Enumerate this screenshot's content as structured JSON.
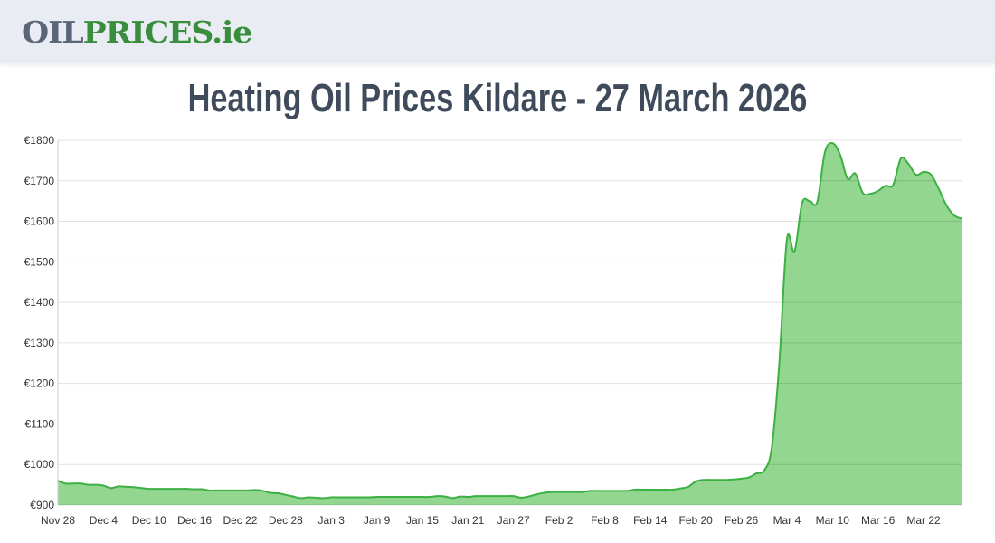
{
  "header": {
    "logo_part1": "OIL",
    "logo_part2": "PRICES.ie"
  },
  "page_title": "Heating Oil Prices Kildare - 27 March 2026",
  "colors": {
    "line": "#3cb043",
    "fill": "#92d690",
    "grid": "#dddddd",
    "logo_grey": "#5b6478",
    "logo_green": "#388e3c"
  },
  "chart_data": {
    "type": "area",
    "title": "",
    "xlabel": "",
    "ylabel": "",
    "ylim": [
      900,
      1800
    ],
    "y_ticks": [
      "€900",
      "€1000",
      "€1100",
      "€1200",
      "€1300",
      "€1400",
      "€1500",
      "€1600",
      "€1700",
      "€1800"
    ],
    "x_ticks": [
      "Nov 28",
      "Dec 4",
      "Dec 10",
      "Dec 16",
      "Dec 22",
      "Dec 28",
      "Jan 3",
      "Jan 9",
      "Jan 15",
      "Jan 21",
      "Jan 27",
      "Feb 2",
      "Feb 8",
      "Feb 14",
      "Feb 20",
      "Feb 26",
      "Mar 4",
      "Mar 10",
      "Mar 16",
      "Mar 22"
    ],
    "x_start": "Nov 28",
    "x_end": "Mar 27",
    "grid": true,
    "values": [
      960,
      953,
      953,
      953,
      950,
      950,
      948,
      942,
      946,
      945,
      944,
      942,
      940,
      940,
      940,
      940,
      940,
      940,
      939,
      939,
      936,
      936,
      936,
      936,
      936,
      936,
      937,
      935,
      930,
      929,
      925,
      921,
      917,
      919,
      918,
      917,
      919,
      919,
      919,
      919,
      919,
      919,
      920,
      920,
      920,
      920,
      920,
      920,
      920,
      920,
      922,
      921,
      917,
      921,
      920,
      922,
      922,
      922,
      922,
      922,
      922,
      918,
      921,
      926,
      930,
      932,
      932,
      932,
      932,
      932,
      935,
      935,
      935,
      935,
      935,
      935,
      938,
      938,
      938,
      938,
      938,
      938,
      941,
      945,
      958,
      962,
      962,
      962,
      962,
      963,
      965,
      968,
      978,
      985,
      1040,
      1250,
      1555,
      1525,
      1645,
      1650,
      1648,
      1770,
      1793,
      1765,
      1705,
      1718,
      1670,
      1668,
      1675,
      1688,
      1690,
      1755,
      1742,
      1715,
      1722,
      1715,
      1680,
      1640,
      1615,
      1607
    ]
  }
}
